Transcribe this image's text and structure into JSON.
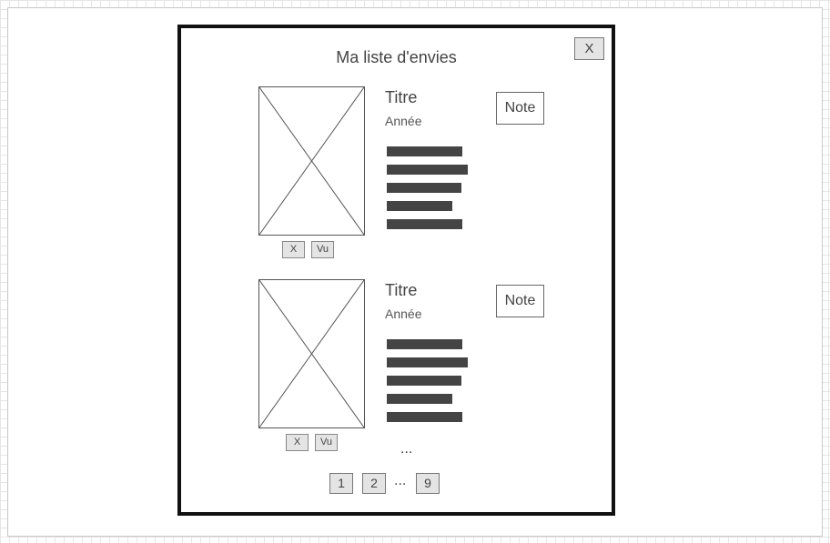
{
  "modal": {
    "title": "Ma liste d'envies",
    "close_label": "X"
  },
  "items": [
    {
      "title": "Titre",
      "year": "Année",
      "remove_label": "X",
      "seen_label": "Vu",
      "note_label": "Note"
    },
    {
      "title": "Titre",
      "year": "Année",
      "remove_label": "X",
      "seen_label": "Vu",
      "note_label": "Note"
    }
  ],
  "more_indicator": "...",
  "pagination": {
    "pages": [
      "1",
      "2",
      "9"
    ],
    "ellipsis": "..."
  }
}
